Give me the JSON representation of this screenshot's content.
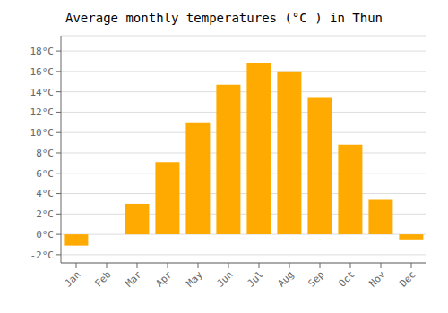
{
  "chart_data": {
    "type": "bar",
    "title": "Average monthly temperatures (°C ) in Thun",
    "categories": [
      "Jan",
      "Feb",
      "Mar",
      "Apr",
      "May",
      "Jun",
      "Jul",
      "Aug",
      "Sep",
      "Oct",
      "Nov",
      "Dec"
    ],
    "values": [
      -1.1,
      0.0,
      3.0,
      7.1,
      11.0,
      14.7,
      16.8,
      16.0,
      13.4,
      8.8,
      3.4,
      -0.5
    ],
    "color": "#FFAA00",
    "ylim": [
      -2.8,
      19.5
    ],
    "yticks": [
      {
        "value": -2,
        "label": "-2°C"
      },
      {
        "value": 0,
        "label": "0°C"
      },
      {
        "value": 2,
        "label": "2°C"
      },
      {
        "value": 4,
        "label": "4°C"
      },
      {
        "value": 6,
        "label": "6°C"
      },
      {
        "value": 8,
        "label": "8°C"
      },
      {
        "value": 10,
        "label": "10°C"
      },
      {
        "value": 12,
        "label": "12°C"
      },
      {
        "value": 14,
        "label": "14°C"
      },
      {
        "value": 16,
        "label": "16°C"
      },
      {
        "value": 18,
        "label": "18°C"
      }
    ],
    "grid": true
  }
}
